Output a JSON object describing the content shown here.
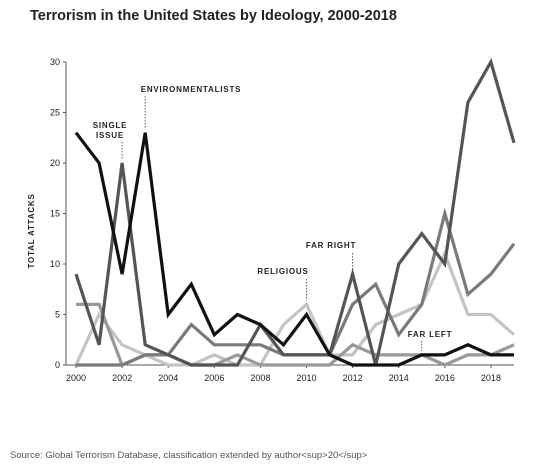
{
  "chart_data": {
    "type": "line",
    "title": "Terrorism in the United States by Ideology, 2000-2018",
    "ylabel": "TOTAL ATTACKS",
    "xlabel": "",
    "xlim": [
      2000,
      2019
    ],
    "ylim": [
      0,
      30
    ],
    "x_ticks": [
      "2000",
      "2002",
      "2004",
      "2006",
      "2008",
      "2010",
      "2012",
      "2014",
      "2016",
      "2018"
    ],
    "y_ticks": [
      "0",
      "5",
      "10",
      "15",
      "20",
      "25",
      "30"
    ],
    "grid": false,
    "x": [
      2000,
      2001,
      2002,
      2003,
      2004,
      2005,
      2006,
      2007,
      2008,
      2009,
      2010,
      2011,
      2012,
      2013,
      2014,
      2015,
      2016,
      2017,
      2018,
      2019
    ],
    "series": [
      {
        "name": "ENVIRONMENTALISTS",
        "color": "#111111",
        "values": [
          23,
          20,
          9,
          23,
          5,
          8,
          3,
          5,
          4,
          2,
          5,
          1,
          0,
          0,
          0,
          1,
          1,
          2,
          1,
          1
        ]
      },
      {
        "name": "SINGLE ISSUE",
        "color": "#555555",
        "values": [
          9,
          2,
          20,
          2,
          1,
          0,
          0,
          0,
          4,
          1,
          1,
          1,
          9,
          0,
          10,
          13,
          10,
          26,
          30,
          22
        ]
      },
      {
        "name": "FAR RIGHT",
        "color": "#7a7a7a",
        "values": [
          0,
          0,
          0,
          1,
          1,
          4,
          2,
          2,
          2,
          1,
          1,
          1,
          6,
          8,
          3,
          6,
          15,
          7,
          9,
          12
        ]
      },
      {
        "name": "RELIGIOUS",
        "color": "#c4c4c4",
        "values": [
          0,
          5,
          2,
          1,
          0,
          0,
          1,
          0,
          0,
          4,
          6,
          1,
          1,
          4,
          5,
          6,
          11,
          5,
          5,
          3
        ]
      },
      {
        "name": "FAR LEFT",
        "color": "#999999",
        "values": [
          6,
          6,
          0,
          1,
          1,
          0,
          0,
          1,
          0,
          0,
          0,
          0,
          2,
          1,
          1,
          1,
          0,
          1,
          1,
          2
        ]
      }
    ],
    "annotations": [
      {
        "text": "ENVIRONMENTALISTS",
        "x": 2003
      },
      {
        "text": "SINGLE",
        "x": 2002
      },
      {
        "text": "ISSUE",
        "x": 2002
      },
      {
        "text": "RELIGIOUS",
        "x": 2010
      },
      {
        "text": "FAR RIGHT",
        "x": 2012
      },
      {
        "text": "FAR LEFT",
        "x": 2015
      }
    ]
  },
  "source": "Source: Global Terrorism Database, classification extended by author<sup>20</sup>"
}
